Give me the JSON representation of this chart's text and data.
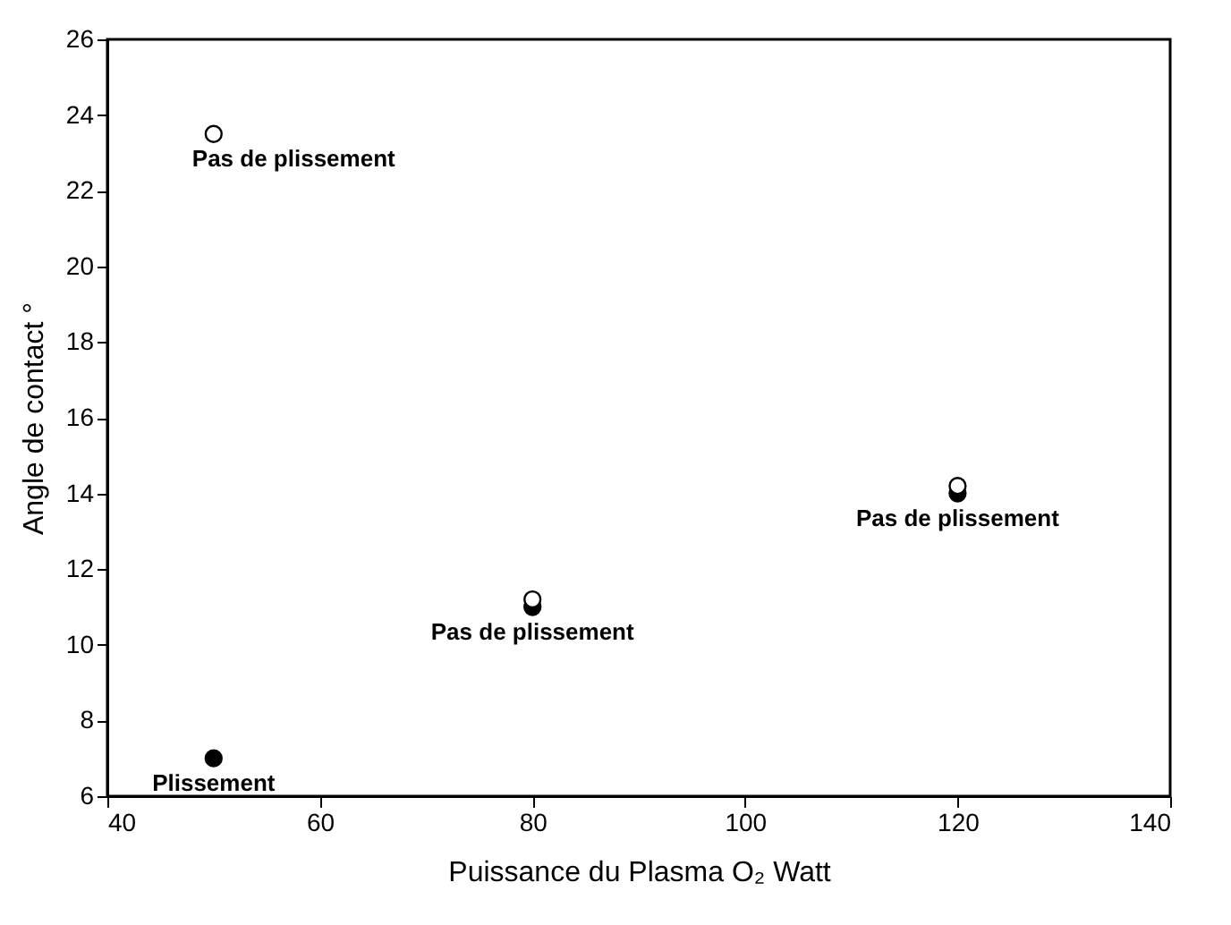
{
  "chart_data": {
    "type": "scatter",
    "xlabel": "Puissance du Plasma O₂ Watt",
    "ylabel": "Angle de contact °",
    "x": [
      50,
      80,
      120
    ],
    "series": [
      {
        "color": "#000000",
        "values": [
          7.0,
          11.0,
          14.0
        ]
      },
      {
        "color": "#ffffff",
        "values": [
          23.5,
          11.2,
          14.2
        ]
      }
    ],
    "xlim": [
      40,
      140
    ],
    "xticks": [
      40,
      60,
      80,
      100,
      120,
      140
    ],
    "ylim": [
      6,
      26
    ],
    "yticks": [
      6,
      8,
      10,
      12,
      14,
      16,
      18,
      20,
      22,
      24,
      26
    ],
    "annotations": [
      {
        "text": "Pas de plissement",
        "x": 50,
        "y": 23.5
      },
      {
        "text": "Pas de plissement",
        "x": 80,
        "y": 11.0
      },
      {
        "text": "Pas de plissement",
        "x": 120,
        "y": 14.0
      },
      {
        "text": "Plissement",
        "x": 50,
        "y": 7.0
      }
    ],
    "grid": false,
    "legend": false,
    "marker": "circle"
  }
}
